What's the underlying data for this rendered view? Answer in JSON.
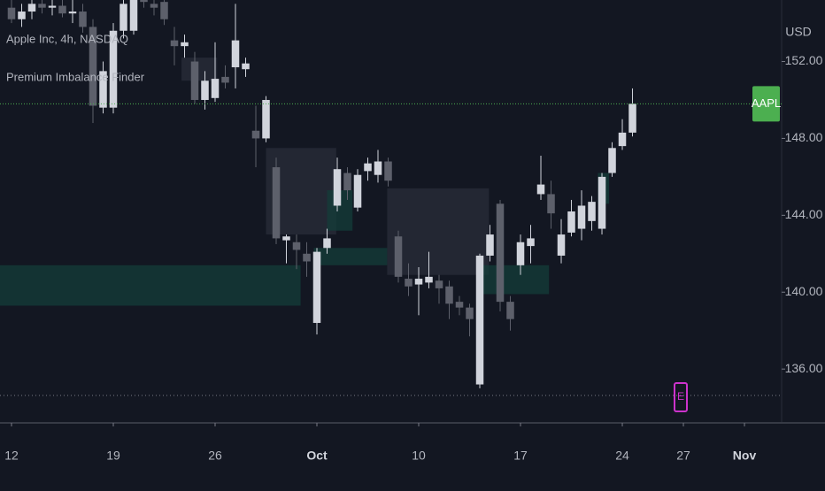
{
  "chart_data": {
    "type": "candlestick",
    "title": "Apple Inc, 4h, NASDAQ",
    "subtitle": "Premium Imbalance Finder",
    "y_axis_label": "USD",
    "symbol_tag": "AAPL",
    "event_marker": "E",
    "up_color": "#d1d4dc",
    "down_color": "#5d606b",
    "price_line_color": "#4caf50",
    "open": [
      154.8,
      154.2,
      154.6,
      155,
      154.8,
      154.9,
      154.5,
      154.6,
      153.8,
      149.6,
      149.6,
      153.6,
      153.6,
      155.2,
      155,
      155.1,
      153.1,
      152.8,
      152,
      150,
      150.1,
      151.2,
      151.7,
      151.6,
      148.4,
      148,
      146.5,
      142.7,
      142.6,
      142,
      138.4,
      142.3,
      144.5,
      146.2,
      144.4,
      146.3,
      146.1,
      146.8,
      142.9,
      140.7,
      140.4,
      140.5,
      140.6,
      140.3,
      139.5,
      139.2,
      135.2,
      141.9,
      144.6,
      139.5,
      141.4,
      142.4,
      145.1,
      145.1,
      141.9,
      143.1,
      143.3,
      143.7,
      143.3,
      146.2,
      147.6,
      148.3
    ],
    "high": [
      155.5,
      155,
      155.4,
      155.4,
      155.3,
      155.3,
      155.2,
      155,
      154.2,
      152,
      154,
      155.3,
      155.5,
      155.5,
      155.4,
      155.5,
      153.8,
      153.4,
      152.5,
      151.5,
      153,
      151.8,
      155,
      152.2,
      149.7,
      150.2,
      147,
      143,
      143,
      142.6,
      142.3,
      143.3,
      147,
      146.5,
      146.4,
      147,
      147.4,
      147,
      143.2,
      141.5,
      141.3,
      142.1,
      140.9,
      140.6,
      139.8,
      139.4,
      142,
      143.5,
      144.8,
      139.8,
      143,
      143.5,
      147.1,
      145.8,
      143.8,
      144.8,
      145.3,
      145,
      146.2,
      147.8,
      149,
      150.6
    ],
    "low": [
      154,
      153.8,
      154.2,
      154.5,
      154.4,
      154.3,
      154,
      153.5,
      148.8,
      149.3,
      149.3,
      153.2,
      153.4,
      154.8,
      154.4,
      153.9,
      151.8,
      152.2,
      149.8,
      149.5,
      149.9,
      150.6,
      150.6,
      151.2,
      146.5,
      147.8,
      142.5,
      141.5,
      141.2,
      140.8,
      137.8,
      142,
      144.2,
      144.8,
      144.2,
      145.8,
      145.7,
      145.5,
      140.5,
      139.8,
      138.8,
      140.2,
      139.4,
      138.6,
      138.8,
      137.7,
      135,
      141.6,
      139,
      138,
      140.9,
      141.5,
      144.8,
      143.3,
      141.5,
      142.9,
      142.7,
      143.2,
      143,
      146,
      147.4,
      148.1
    ],
    "close": [
      154.2,
      154.6,
      155,
      154.8,
      154.9,
      154.5,
      154.6,
      153.8,
      149.7,
      151.5,
      153.6,
      155,
      155.3,
      155.1,
      154.8,
      154.2,
      152.8,
      153,
      150,
      151,
      151.1,
      150.9,
      153.1,
      151.9,
      148,
      150,
      142.8,
      142.9,
      142.2,
      141.6,
      142.1,
      142.8,
      146.4,
      145.3,
      146.1,
      146.7,
      146.8,
      145.8,
      140.8,
      140.3,
      140.7,
      140.8,
      140.2,
      139.4,
      139.2,
      138.6,
      141.9,
      143,
      139.5,
      138.6,
      142.6,
      142.8,
      145.6,
      144.1,
      143,
      144.2,
      144.5,
      144.7,
      146,
      147.5,
      148.3,
      149.8
    ],
    "zones": [
      {
        "start": 16.7,
        "end": 20.2,
        "low": 151.0,
        "high": 152.2,
        "color": "#2a2e39"
      },
      {
        "start": 25,
        "end": 31.9,
        "low": 143.0,
        "high": 147.5,
        "color": "#2a2e39"
      },
      {
        "start": 36.9,
        "end": 46.9,
        "low": 140.9,
        "high": 145.4,
        "color": "#2a2e39"
      },
      {
        "start": -1.13,
        "end": 28.4,
        "low": 139.3,
        "high": 141.4,
        "color": "#143d3a"
      },
      {
        "start": 29.7,
        "end": 36.9,
        "low": 141.4,
        "high": 142.3,
        "color": "#143d3a"
      },
      {
        "start": 31,
        "end": 33.5,
        "low": 143.2,
        "high": 145.3,
        "color": "#143d3a"
      },
      {
        "start": 45.8,
        "end": 52.8,
        "low": 139.9,
        "high": 141.4,
        "color": "#143d3a"
      },
      {
        "start": 57.6,
        "end": 58.7,
        "low": 144.6,
        "high": 146.2,
        "color": "#143d3a"
      }
    ],
    "xlim": [
      -1.13,
      75.65
    ],
    "xticks": [
      {
        "value": 0,
        "label": "12"
      },
      {
        "value": 10,
        "label": "19"
      },
      {
        "value": 20,
        "label": "26"
      },
      {
        "value": 30,
        "label": "Oct"
      },
      {
        "value": 40,
        "label": "10"
      },
      {
        "value": 50,
        "label": "17"
      },
      {
        "value": 60,
        "label": "24"
      },
      {
        "value": 66,
        "label": "27"
      },
      {
        "value": 72,
        "label": "Nov"
      }
    ],
    "ylim": [
      133.2,
      155.2
    ],
    "yticks": [
      {
        "value": 136,
        "label": "136.00"
      },
      {
        "value": 140,
        "label": "140.00"
      },
      {
        "value": 144,
        "label": "144.00"
      },
      {
        "value": 148,
        "label": "148.00"
      },
      {
        "value": 152,
        "label": "152.00"
      }
    ]
  }
}
